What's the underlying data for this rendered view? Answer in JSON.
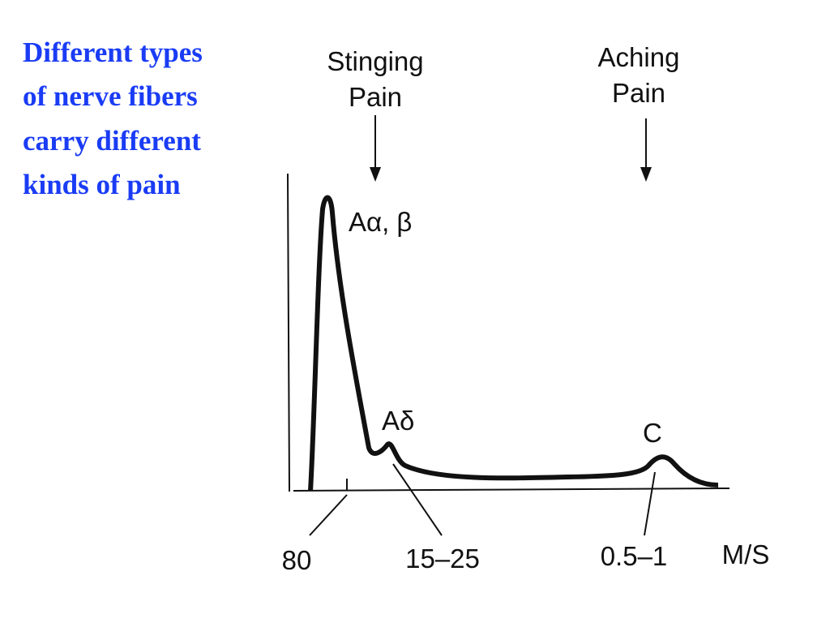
{
  "title": {
    "lines": [
      "Different types",
      "of nerve fibers",
      "carry different",
      "kinds of pain"
    ]
  },
  "diagram": {
    "arrows": [
      {
        "label_lines": [
          "Stinging",
          "Pain"
        ]
      },
      {
        "label_lines": [
          "Aching",
          "Pain"
        ]
      }
    ],
    "peaks": [
      "Aα, β",
      "Aδ",
      "C"
    ],
    "axis_labels": [
      "80",
      "15–25",
      "0.5–1"
    ],
    "unit": "M/S"
  }
}
